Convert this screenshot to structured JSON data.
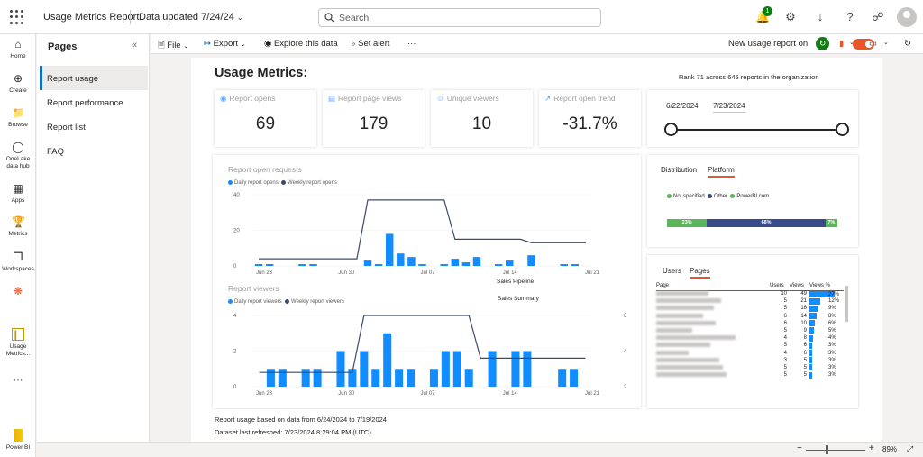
{
  "topbar": {
    "app_title": "Usage Metrics Report",
    "data_updated": "Data updated 7/24/24",
    "search_placeholder": "Search",
    "notification_count": "1"
  },
  "leftnav": [
    {
      "label": "Home",
      "icon": "home-icon"
    },
    {
      "label": "Create",
      "icon": "plus-icon"
    },
    {
      "label": "Browse",
      "icon": "folder-icon"
    },
    {
      "label": "OneLake data hub",
      "icon": "onelake-icon"
    },
    {
      "label": "Apps",
      "icon": "apps-icon"
    },
    {
      "label": "Metrics",
      "icon": "trophy-icon"
    },
    {
      "label": "Workspaces",
      "icon": "workspaces-icon"
    },
    {
      "label": "Usage Metrics...",
      "icon": "report-icon"
    },
    {
      "label": "Power BI",
      "icon": "powerbi-icon"
    }
  ],
  "pages_panel": {
    "title": "Pages",
    "items": [
      "Report usage",
      "Report performance",
      "Report list",
      "FAQ"
    ],
    "active": "Report usage"
  },
  "toolbar": {
    "file": "File",
    "export": "Export",
    "explore": "Explore this data",
    "alert": "Set alert",
    "more": "···",
    "new_usage": "New usage report on"
  },
  "report": {
    "title": "Usage Metrics:",
    "rank": "Rank 71 across 645 reports in the organization",
    "kpis": [
      {
        "label": "Report opens",
        "value": "69",
        "icon": "eye-icon"
      },
      {
        "label": "Report page views",
        "value": "179",
        "icon": "page-icon"
      },
      {
        "label": "Unique viewers",
        "value": "10",
        "icon": "user-icon"
      },
      {
        "label": "Report open trend",
        "value": "-31.7%",
        "icon": "trend-icon"
      }
    ],
    "date_start": "6/22/2024",
    "date_end": "7/23/2024",
    "distribution": {
      "tabs": [
        "Distribution",
        "Platform"
      ],
      "active_tab": "Platform",
      "legend": [
        "Not specified",
        "Other",
        "PowerBI.com"
      ],
      "segments": [
        {
          "label": "23%",
          "value": 23,
          "color": "#5bb55b"
        },
        {
          "label": "68%",
          "value": 68,
          "color": "#3b4a8a"
        },
        {
          "label": "7%",
          "value": 7,
          "color": "#5bb55b"
        }
      ]
    },
    "pages_table": {
      "tabs": [
        "Users",
        "Pages"
      ],
      "active_tab": "Pages",
      "headers": [
        "Page",
        "Users",
        "Views",
        "Views %"
      ],
      "rows": [
        {
          "users": "10",
          "views": "49",
          "pct": "27%",
          "pct_value": 27
        },
        {
          "users": "5",
          "views": "21",
          "pct": "12%",
          "pct_value": 12
        },
        {
          "users": "5",
          "views": "16",
          "pct": "9%",
          "pct_value": 9
        },
        {
          "users": "6",
          "views": "14",
          "pct": "8%",
          "pct_value": 8
        },
        {
          "users": "6",
          "views": "10",
          "pct": "6%",
          "pct_value": 6
        },
        {
          "users": "5",
          "views": "9",
          "pct": "5%",
          "pct_value": 5
        },
        {
          "users": "4",
          "views": "8",
          "pct": "4%",
          "pct_value": 4
        },
        {
          "users": "5",
          "views": "6",
          "pct": "3%",
          "pct_value": 3
        },
        {
          "users": "4",
          "views": "6",
          "pct": "3%",
          "pct_value": 3
        },
        {
          "users": "3",
          "views": "5",
          "pct": "3%",
          "pct_value": 3
        },
        {
          "users": "5",
          "views": "5",
          "pct": "3%",
          "pct_value": 3
        },
        {
          "users": "5",
          "views": "5",
          "pct": "3%",
          "pct_value": 3
        }
      ]
    },
    "footer1": "Report usage based on data from 6/24/2024 to 7/19/2024",
    "footer2": "Dataset last refreshed: 7/23/2024 8:29:04 PM (UTC)"
  },
  "chart_data": [
    {
      "type": "bar",
      "title": "Report open requests",
      "series": [
        {
          "name": "Daily report opens",
          "color": "#118dff",
          "values": [
            1,
            1,
            0,
            0,
            1,
            1,
            0,
            0,
            0,
            0,
            3,
            1,
            18,
            7,
            5,
            1,
            0,
            1,
            4,
            2,
            5,
            0,
            1,
            3,
            0,
            6,
            0,
            0,
            1,
            1,
            0
          ]
        },
        {
          "name": "Weekly report opens",
          "color": "#3b4a6b",
          "type": "line",
          "values": [
            4,
            4,
            4,
            4,
            4,
            4,
            4,
            4,
            4,
            4,
            37,
            37,
            37,
            37,
            37,
            37,
            37,
            37,
            15,
            15,
            15,
            15,
            15,
            15,
            15,
            13,
            13,
            13,
            13,
            13,
            13
          ]
        }
      ],
      "yticks": [
        "0",
        "20",
        "40"
      ],
      "xticks": [
        "Jun 23",
        "Jun 30",
        "Jul 07",
        "Jul 14",
        "Jul 21"
      ],
      "ylim": [
        0,
        40
      ],
      "annotations": [
        "Sales Pipeline",
        "Sales Summary"
      ]
    },
    {
      "type": "bar",
      "title": "Report viewers",
      "series": [
        {
          "name": "Daily report viewers",
          "color": "#118dff",
          "values": [
            0,
            1,
            1,
            0,
            1,
            1,
            0,
            2,
            1,
            2,
            1,
            3,
            1,
            1,
            0,
            1,
            2,
            2,
            1,
            0,
            2,
            0,
            2,
            2,
            0,
            0,
            1,
            1,
            0
          ]
        },
        {
          "name": "Weekly report viewers",
          "color": "#3b4a6b",
          "type": "line",
          "values": [
            2,
            2,
            2,
            2,
            2,
            2,
            2,
            2,
            2,
            6,
            6,
            6,
            6,
            6,
            6,
            6,
            6,
            6,
            6,
            3,
            3,
            3,
            3,
            3,
            3,
            3,
            3,
            3,
            3
          ]
        }
      ],
      "yticks_left": [
        "0",
        "2",
        "4"
      ],
      "yticks_right": [
        "2",
        "4",
        "6"
      ],
      "xticks": [
        "Jun 23",
        "Jun 30",
        "Jul 07",
        "Jul 14",
        "Jul 21"
      ],
      "ylim": [
        0,
        4
      ],
      "y2lim": [
        1,
        6
      ]
    }
  ],
  "statusbar": {
    "zoom": "89%"
  }
}
